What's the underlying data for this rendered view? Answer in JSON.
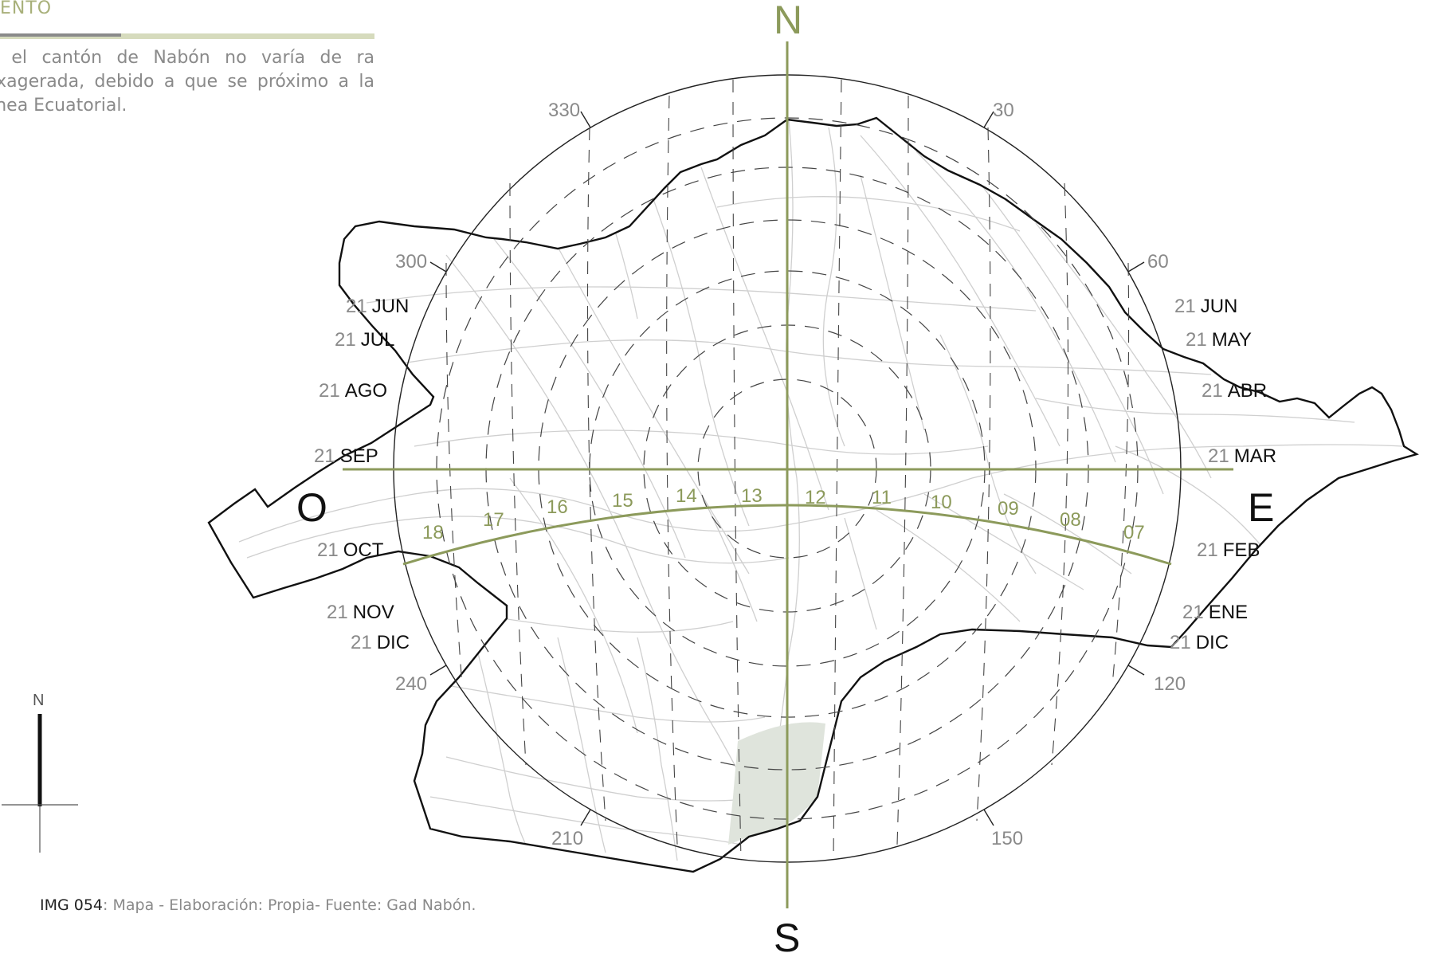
{
  "header": {
    "section_title": "ENTO",
    "paragraph": "n el cantón de Nabón no varía de ra exagerada, debido a que se próximo a la línea Ecuatorial."
  },
  "caption": {
    "ref": "IMG 054",
    "text": ": Mapa - Elaboración: Propia- Fuente: Gad Nabón."
  },
  "compass": {
    "north": "N",
    "south": "S",
    "east": "E",
    "west": "O"
  },
  "north_arrow": {
    "label": "N"
  },
  "azimuth_labels": [
    "30",
    "60",
    "120",
    "150",
    "210",
    "240",
    "300",
    "330"
  ],
  "hour_labels": [
    "18",
    "17",
    "16",
    "15",
    "14",
    "13",
    "12",
    "11",
    "10",
    "09",
    "08",
    "07"
  ],
  "month_labels_left": [
    {
      "day": "21",
      "month": "JUN"
    },
    {
      "day": "21",
      "month": "JUL"
    },
    {
      "day": "21",
      "month": "AGO"
    },
    {
      "day": "21",
      "month": "SEP"
    },
    {
      "day": "21",
      "month": "OCT"
    },
    {
      "day": "21",
      "month": "NOV"
    },
    {
      "day": "21",
      "month": "DIC"
    }
  ],
  "month_labels_right": [
    {
      "day": "21",
      "month": "JUN"
    },
    {
      "day": "21",
      "month": "MAY"
    },
    {
      "day": "21",
      "month": "ABR"
    },
    {
      "day": "21",
      "month": "MAR"
    },
    {
      "day": "21",
      "month": "FEB"
    },
    {
      "day": "21",
      "month": "ENE"
    },
    {
      "day": "21",
      "month": "DIC"
    }
  ],
  "colors": {
    "accent_olive": "#8c9a5b",
    "map_streets": "#c8c8c8",
    "boundary": "#111111",
    "grey_text": "#8a8a8a",
    "park_fill": "#dfe4dc"
  }
}
